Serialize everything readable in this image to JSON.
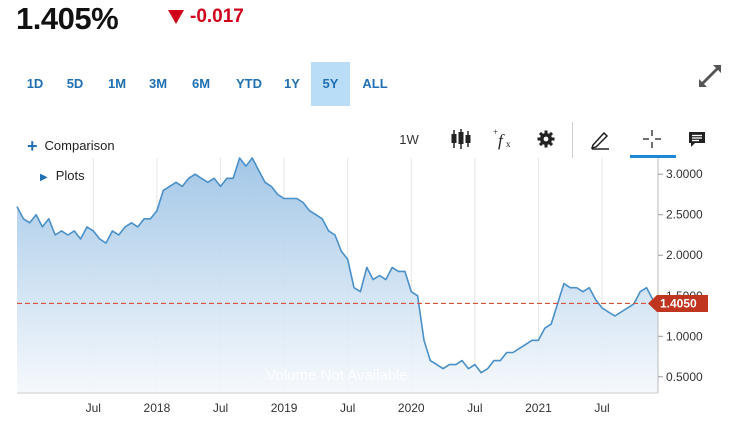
{
  "quote": {
    "last": "1.405%",
    "change": "-0.017",
    "direction_color": "#d0021b"
  },
  "ranges": {
    "items": [
      "1D",
      "5D",
      "1M",
      "3M",
      "6M",
      "YTD",
      "1Y",
      "5Y",
      "ALL"
    ],
    "active": "5Y"
  },
  "toolbar": {
    "comparison_label": "Comparison",
    "interval_label": "1W",
    "plots_label": "Plots"
  },
  "chart_data": {
    "type": "area",
    "xlabel": "",
    "ylabel": "",
    "ylim": [
      0.3,
      3.2
    ],
    "y_ticks": [
      "0.5000",
      "1.0000",
      "1.5000",
      "2.0000",
      "2.5000",
      "3.0000"
    ],
    "x_ticks": [
      {
        "label": "Jul",
        "x": 2017.5
      },
      {
        "label": "2018",
        "x": 2018.0
      },
      {
        "label": "Jul",
        "x": 2018.5
      },
      {
        "label": "2019",
        "x": 2019.0
      },
      {
        "label": "Jul",
        "x": 2019.5
      },
      {
        "label": "2020",
        "x": 2020.0
      },
      {
        "label": "Jul",
        "x": 2020.5
      },
      {
        "label": "2021",
        "x": 2021.0
      },
      {
        "label": "Jul",
        "x": 2021.5
      }
    ],
    "xlim": [
      2016.9,
      2021.94
    ],
    "last_value_label": "1.4050",
    "last_value": 1.405,
    "watermark": "Volume Not Available",
    "colors": {
      "line": "#4a90c8",
      "fill_top": "#9ec4e6",
      "fill_bottom": "#f4f8fc",
      "tag": "#c0351f",
      "ref_line": "#d9533a"
    },
    "series": [
      {
        "x": [
          2016.9,
          2016.95,
          2017.0,
          2017.05,
          2017.1,
          2017.15,
          2017.2,
          2017.25,
          2017.3,
          2017.35,
          2017.4,
          2017.45,
          2017.5,
          2017.55,
          2017.6,
          2017.65,
          2017.7,
          2017.75,
          2017.8,
          2017.85,
          2017.9,
          2017.95,
          2018.0,
          2018.05,
          2018.1,
          2018.15,
          2018.2,
          2018.25,
          2018.3,
          2018.35,
          2018.4,
          2018.45,
          2018.5,
          2018.55,
          2018.6,
          2018.65,
          2018.7,
          2018.75,
          2018.8,
          2018.85,
          2018.9,
          2018.95,
          2019.0,
          2019.05,
          2019.1,
          2019.15,
          2019.2,
          2019.25,
          2019.3,
          2019.35,
          2019.4,
          2019.45,
          2019.5,
          2019.55,
          2019.6,
          2019.65,
          2019.7,
          2019.75,
          2019.8,
          2019.85,
          2019.9,
          2019.95,
          2020.0,
          2020.05,
          2020.1,
          2020.15,
          2020.2,
          2020.25,
          2020.3,
          2020.35,
          2020.4,
          2020.45,
          2020.5,
          2020.55,
          2020.6,
          2020.65,
          2020.7,
          2020.75,
          2020.8,
          2020.85,
          2020.9,
          2020.95,
          2021.0,
          2021.05,
          2021.1,
          2021.15,
          2021.2,
          2021.25,
          2021.3,
          2021.35,
          2021.4,
          2021.45,
          2021.5,
          2021.55,
          2021.6,
          2021.65,
          2021.7,
          2021.75,
          2021.8,
          2021.85,
          2021.9,
          2021.94
        ],
        "y": [
          2.6,
          2.45,
          2.4,
          2.5,
          2.35,
          2.45,
          2.25,
          2.3,
          2.25,
          2.3,
          2.2,
          2.35,
          2.3,
          2.2,
          2.15,
          2.3,
          2.25,
          2.35,
          2.4,
          2.35,
          2.45,
          2.45,
          2.55,
          2.8,
          2.85,
          2.9,
          2.85,
          2.95,
          3.0,
          2.95,
          2.9,
          2.95,
          2.85,
          2.95,
          2.95,
          3.2,
          3.1,
          3.2,
          3.05,
          2.9,
          2.85,
          2.75,
          2.7,
          2.7,
          2.7,
          2.65,
          2.55,
          2.5,
          2.45,
          2.3,
          2.25,
          2.05,
          1.95,
          1.6,
          1.55,
          1.85,
          1.7,
          1.75,
          1.7,
          1.85,
          1.8,
          1.8,
          1.55,
          1.5,
          0.95,
          0.7,
          0.65,
          0.6,
          0.65,
          0.65,
          0.7,
          0.6,
          0.65,
          0.55,
          0.6,
          0.7,
          0.7,
          0.8,
          0.8,
          0.85,
          0.9,
          0.95,
          0.95,
          1.1,
          1.15,
          1.4,
          1.65,
          1.6,
          1.6,
          1.55,
          1.6,
          1.45,
          1.35,
          1.3,
          1.25,
          1.3,
          1.35,
          1.4,
          1.55,
          1.6,
          1.45,
          1.405
        ]
      }
    ]
  }
}
